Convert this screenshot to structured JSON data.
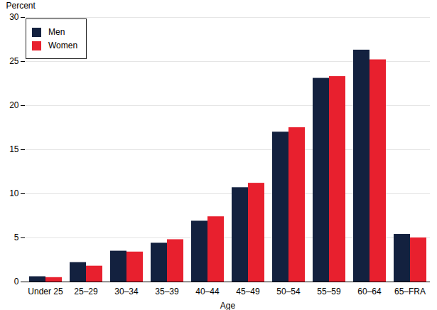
{
  "chart_data": {
    "type": "bar",
    "categories": [
      "Under 25",
      "25–29",
      "30–34",
      "35–39",
      "40–44",
      "45–49",
      "50–54",
      "55–59",
      "60–64",
      "65–FRA"
    ],
    "series": [
      {
        "name": "Men",
        "color": "#13213f",
        "values": [
          0.6,
          2.2,
          3.5,
          4.4,
          6.9,
          10.7,
          17.0,
          23.1,
          26.3,
          5.4
        ]
      },
      {
        "name": "Women",
        "color": "#e8202e",
        "values": [
          0.5,
          1.8,
          3.4,
          4.8,
          7.4,
          11.2,
          17.5,
          23.3,
          25.2,
          5.0
        ]
      }
    ],
    "x_label": "Age",
    "y_label": "Percent",
    "ylim": [
      0,
      30
    ],
    "yticks": [
      0,
      5,
      10,
      15,
      20,
      25,
      30
    ],
    "grid": true,
    "legend": "top-left"
  }
}
